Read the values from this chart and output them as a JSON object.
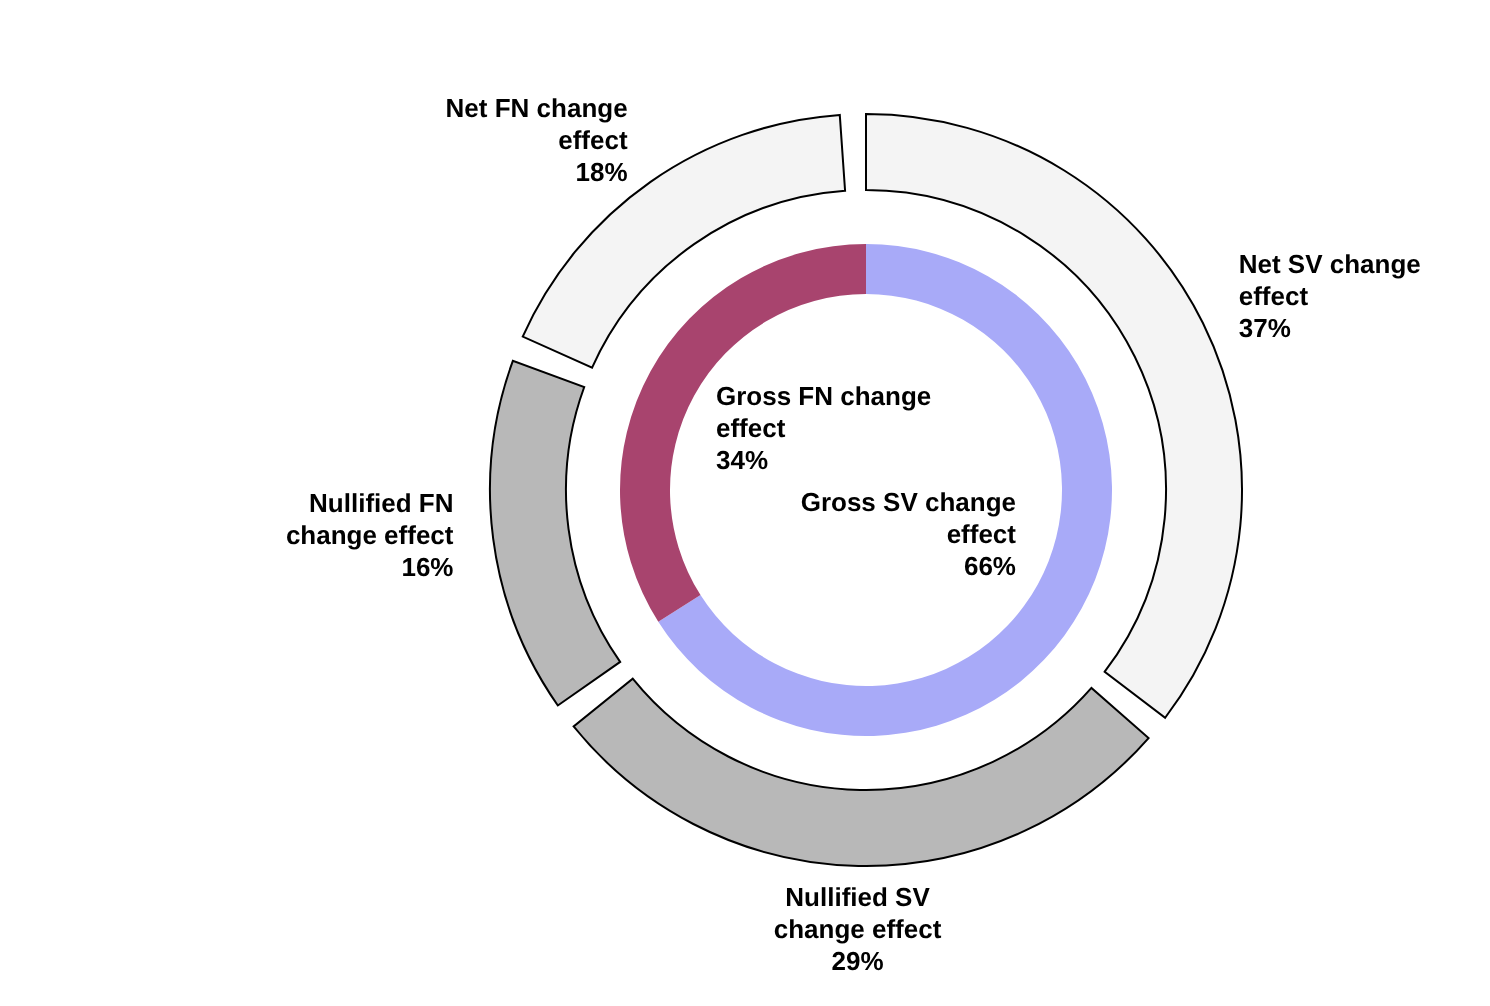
{
  "chart_data": [
    {
      "type": "donut",
      "categories": [
        "Gross SV change effect",
        "Gross FN change effect"
      ],
      "values": [
        66,
        34
      ],
      "colors": [
        "#a8aaf8",
        "#a8446e"
      ],
      "value_labels": [
        "66%",
        "34%"
      ]
    },
    {
      "type": "donut",
      "categories": [
        "Net SV change effect",
        "Nullified SV change effect",
        "Nullified FN change effect",
        "Net FN change effect"
      ],
      "values": [
        37,
        29,
        16,
        18
      ],
      "colors": [
        "#f4f4f4",
        "#b8b8b8",
        "#b8b8b8",
        "#f4f4f4"
      ],
      "value_labels": [
        "37%",
        "29%",
        "16%",
        "18%"
      ]
    }
  ]
}
